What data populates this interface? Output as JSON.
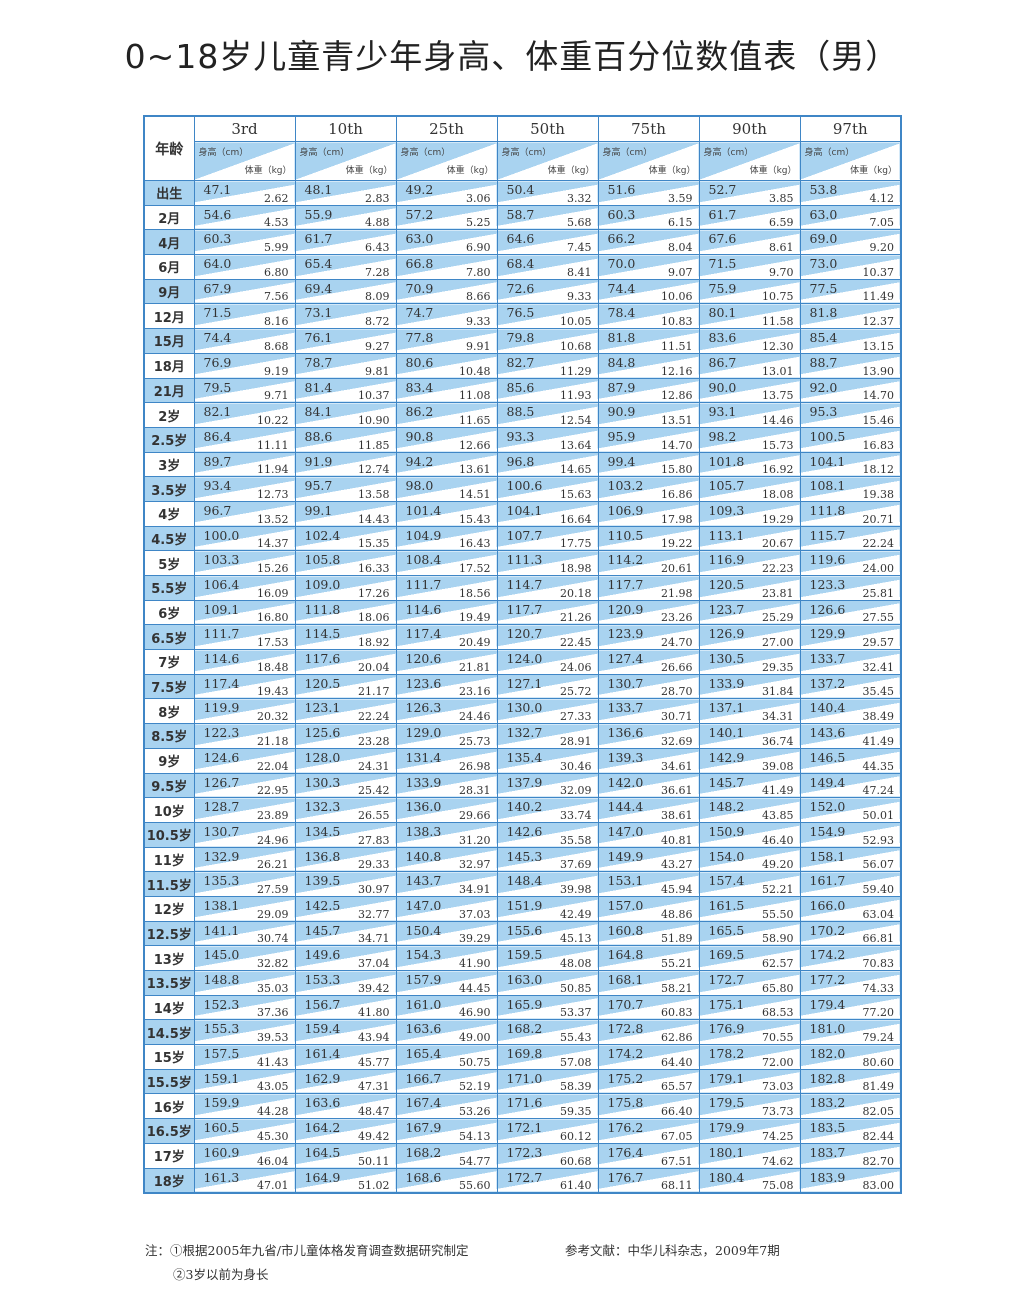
{
  "title": "0~18岁儿童青少年身高、体重百分位数值表（男）",
  "colors": {
    "border": "#3f86c6",
    "cell_blue": "#a9d3f0"
  },
  "table": {
    "age_header": "年龄",
    "height_unit": "身高（cm）",
    "weight_unit": "体重（kg）",
    "percentiles": [
      "3rd",
      "10th",
      "25th",
      "50th",
      "75th",
      "90th",
      "97th"
    ],
    "rows": [
      [
        "出生",
        "47.1",
        "2.62",
        "48.1",
        "2.83",
        "49.2",
        "3.06",
        "50.4",
        "3.32",
        "51.6",
        "3.59",
        "52.7",
        "3.85",
        "53.8",
        "4.12"
      ],
      [
        "2月",
        "54.6",
        "4.53",
        "55.9",
        "4.88",
        "57.2",
        "5.25",
        "58.7",
        "5.68",
        "60.3",
        "6.15",
        "61.7",
        "6.59",
        "63.0",
        "7.05"
      ],
      [
        "4月",
        "60.3",
        "5.99",
        "61.7",
        "6.43",
        "63.0",
        "6.90",
        "64.6",
        "7.45",
        "66.2",
        "8.04",
        "67.6",
        "8.61",
        "69.0",
        "9.20"
      ],
      [
        "6月",
        "64.0",
        "6.80",
        "65.4",
        "7.28",
        "66.8",
        "7.80",
        "68.4",
        "8.41",
        "70.0",
        "9.07",
        "71.5",
        "9.70",
        "73.0",
        "10.37"
      ],
      [
        "9月",
        "67.9",
        "7.56",
        "69.4",
        "8.09",
        "70.9",
        "8.66",
        "72.6",
        "9.33",
        "74.4",
        "10.06",
        "75.9",
        "10.75",
        "77.5",
        "11.49"
      ],
      [
        "12月",
        "71.5",
        "8.16",
        "73.1",
        "8.72",
        "74.7",
        "9.33",
        "76.5",
        "10.05",
        "78.4",
        "10.83",
        "80.1",
        "11.58",
        "81.8",
        "12.37"
      ],
      [
        "15月",
        "74.4",
        "8.68",
        "76.1",
        "9.27",
        "77.8",
        "9.91",
        "79.8",
        "10.68",
        "81.8",
        "11.51",
        "83.6",
        "12.30",
        "85.4",
        "13.15"
      ],
      [
        "18月",
        "76.9",
        "9.19",
        "78.7",
        "9.81",
        "80.6",
        "10.48",
        "82.7",
        "11.29",
        "84.8",
        "12.16",
        "86.7",
        "13.01",
        "88.7",
        "13.90"
      ],
      [
        "21月",
        "79.5",
        "9.71",
        "81.4",
        "10.37",
        "83.4",
        "11.08",
        "85.6",
        "11.93",
        "87.9",
        "12.86",
        "90.0",
        "13.75",
        "92.0",
        "14.70"
      ],
      [
        "2岁",
        "82.1",
        "10.22",
        "84.1",
        "10.90",
        "86.2",
        "11.65",
        "88.5",
        "12.54",
        "90.9",
        "13.51",
        "93.1",
        "14.46",
        "95.3",
        "15.46"
      ],
      [
        "2.5岁",
        "86.4",
        "11.11",
        "88.6",
        "11.85",
        "90.8",
        "12.66",
        "93.3",
        "13.64",
        "95.9",
        "14.70",
        "98.2",
        "15.73",
        "100.5",
        "16.83"
      ],
      [
        "3岁",
        "89.7",
        "11.94",
        "91.9",
        "12.74",
        "94.2",
        "13.61",
        "96.8",
        "14.65",
        "99.4",
        "15.80",
        "101.8",
        "16.92",
        "104.1",
        "18.12"
      ],
      [
        "3.5岁",
        "93.4",
        "12.73",
        "95.7",
        "13.58",
        "98.0",
        "14.51",
        "100.6",
        "15.63",
        "103.2",
        "16.86",
        "105.7",
        "18.08",
        "108.1",
        "19.38"
      ],
      [
        "4岁",
        "96.7",
        "13.52",
        "99.1",
        "14.43",
        "101.4",
        "15.43",
        "104.1",
        "16.64",
        "106.9",
        "17.98",
        "109.3",
        "19.29",
        "111.8",
        "20.71"
      ],
      [
        "4.5岁",
        "100.0",
        "14.37",
        "102.4",
        "15.35",
        "104.9",
        "16.43",
        "107.7",
        "17.75",
        "110.5",
        "19.22",
        "113.1",
        "20.67",
        "115.7",
        "22.24"
      ],
      [
        "5岁",
        "103.3",
        "15.26",
        "105.8",
        "16.33",
        "108.4",
        "17.52",
        "111.3",
        "18.98",
        "114.2",
        "20.61",
        "116.9",
        "22.23",
        "119.6",
        "24.00"
      ],
      [
        "5.5岁",
        "106.4",
        "16.09",
        "109.0",
        "17.26",
        "111.7",
        "18.56",
        "114.7",
        "20.18",
        "117.7",
        "21.98",
        "120.5",
        "23.81",
        "123.3",
        "25.81"
      ],
      [
        "6岁",
        "109.1",
        "16.80",
        "111.8",
        "18.06",
        "114.6",
        "19.49",
        "117.7",
        "21.26",
        "120.9",
        "23.26",
        "123.7",
        "25.29",
        "126.6",
        "27.55"
      ],
      [
        "6.5岁",
        "111.7",
        "17.53",
        "114.5",
        "18.92",
        "117.4",
        "20.49",
        "120.7",
        "22.45",
        "123.9",
        "24.70",
        "126.9",
        "27.00",
        "129.9",
        "29.57"
      ],
      [
        "7岁",
        "114.6",
        "18.48",
        "117.6",
        "20.04",
        "120.6",
        "21.81",
        "124.0",
        "24.06",
        "127.4",
        "26.66",
        "130.5",
        "29.35",
        "133.7",
        "32.41"
      ],
      [
        "7.5岁",
        "117.4",
        "19.43",
        "120.5",
        "21.17",
        "123.6",
        "23.16",
        "127.1",
        "25.72",
        "130.7",
        "28.70",
        "133.9",
        "31.84",
        "137.2",
        "35.45"
      ],
      [
        "8岁",
        "119.9",
        "20.32",
        "123.1",
        "22.24",
        "126.3",
        "24.46",
        "130.0",
        "27.33",
        "133.7",
        "30.71",
        "137.1",
        "34.31",
        "140.4",
        "38.49"
      ],
      [
        "8.5岁",
        "122.3",
        "21.18",
        "125.6",
        "23.28",
        "129.0",
        "25.73",
        "132.7",
        "28.91",
        "136.6",
        "32.69",
        "140.1",
        "36.74",
        "143.6",
        "41.49"
      ],
      [
        "9岁",
        "124.6",
        "22.04",
        "128.0",
        "24.31",
        "131.4",
        "26.98",
        "135.4",
        "30.46",
        "139.3",
        "34.61",
        "142.9",
        "39.08",
        "146.5",
        "44.35"
      ],
      [
        "9.5岁",
        "126.7",
        "22.95",
        "130.3",
        "25.42",
        "133.9",
        "28.31",
        "137.9",
        "32.09",
        "142.0",
        "36.61",
        "145.7",
        "41.49",
        "149.4",
        "47.24"
      ],
      [
        "10岁",
        "128.7",
        "23.89",
        "132.3",
        "26.55",
        "136.0",
        "29.66",
        "140.2",
        "33.74",
        "144.4",
        "38.61",
        "148.2",
        "43.85",
        "152.0",
        "50.01"
      ],
      [
        "10.5岁",
        "130.7",
        "24.96",
        "134.5",
        "27.83",
        "138.3",
        "31.20",
        "142.6",
        "35.58",
        "147.0",
        "40.81",
        "150.9",
        "46.40",
        "154.9",
        "52.93"
      ],
      [
        "11岁",
        "132.9",
        "26.21",
        "136.8",
        "29.33",
        "140.8",
        "32.97",
        "145.3",
        "37.69",
        "149.9",
        "43.27",
        "154.0",
        "49.20",
        "158.1",
        "56.07"
      ],
      [
        "11.5岁",
        "135.3",
        "27.59",
        "139.5",
        "30.97",
        "143.7",
        "34.91",
        "148.4",
        "39.98",
        "153.1",
        "45.94",
        "157.4",
        "52.21",
        "161.7",
        "59.40"
      ],
      [
        "12岁",
        "138.1",
        "29.09",
        "142.5",
        "32.77",
        "147.0",
        "37.03",
        "151.9",
        "42.49",
        "157.0",
        "48.86",
        "161.5",
        "55.50",
        "166.0",
        "63.04"
      ],
      [
        "12.5岁",
        "141.1",
        "30.74",
        "145.7",
        "34.71",
        "150.4",
        "39.29",
        "155.6",
        "45.13",
        "160.8",
        "51.89",
        "165.5",
        "58.90",
        "170.2",
        "66.81"
      ],
      [
        "13岁",
        "145.0",
        "32.82",
        "149.6",
        "37.04",
        "154.3",
        "41.90",
        "159.5",
        "48.08",
        "164.8",
        "55.21",
        "169.5",
        "62.57",
        "174.2",
        "70.83"
      ],
      [
        "13.5岁",
        "148.8",
        "35.03",
        "153.3",
        "39.42",
        "157.9",
        "44.45",
        "163.0",
        "50.85",
        "168.1",
        "58.21",
        "172.7",
        "65.80",
        "177.2",
        "74.33"
      ],
      [
        "14岁",
        "152.3",
        "37.36",
        "156.7",
        "41.80",
        "161.0",
        "46.90",
        "165.9",
        "53.37",
        "170.7",
        "60.83",
        "175.1",
        "68.53",
        "179.4",
        "77.20"
      ],
      [
        "14.5岁",
        "155.3",
        "39.53",
        "159.4",
        "43.94",
        "163.6",
        "49.00",
        "168.2",
        "55.43",
        "172.8",
        "62.86",
        "176.9",
        "70.55",
        "181.0",
        "79.24"
      ],
      [
        "15岁",
        "157.5",
        "41.43",
        "161.4",
        "45.77",
        "165.4",
        "50.75",
        "169.8",
        "57.08",
        "174.2",
        "64.40",
        "178.2",
        "72.00",
        "182.0",
        "80.60"
      ],
      [
        "15.5岁",
        "159.1",
        "43.05",
        "162.9",
        "47.31",
        "166.7",
        "52.19",
        "171.0",
        "58.39",
        "175.2",
        "65.57",
        "179.1",
        "73.03",
        "182.8",
        "81.49"
      ],
      [
        "16岁",
        "159.9",
        "44.28",
        "163.6",
        "48.47",
        "167.4",
        "53.26",
        "171.6",
        "59.35",
        "175.8",
        "66.40",
        "179.5",
        "73.73",
        "183.2",
        "82.05"
      ],
      [
        "16.5岁",
        "160.5",
        "45.30",
        "164.2",
        "49.42",
        "167.9",
        "54.13",
        "172.1",
        "60.12",
        "176.2",
        "67.05",
        "179.9",
        "74.25",
        "183.5",
        "82.44"
      ],
      [
        "17岁",
        "160.9",
        "46.04",
        "164.5",
        "50.11",
        "168.2",
        "54.77",
        "172.3",
        "60.68",
        "176.4",
        "67.51",
        "180.1",
        "74.62",
        "183.7",
        "82.70"
      ],
      [
        "18岁",
        "161.3",
        "47.01",
        "164.9",
        "51.02",
        "168.6",
        "55.60",
        "172.7",
        "61.40",
        "176.7",
        "68.11",
        "180.4",
        "75.08",
        "183.9",
        "83.00"
      ]
    ]
  },
  "notes": {
    "note1": "注：①根据2005年九省/市儿童体格发育调查数据研究制定",
    "reference": "参考文献：中华儿科杂志，2009年7期",
    "note2": "②3岁以前为身长"
  }
}
